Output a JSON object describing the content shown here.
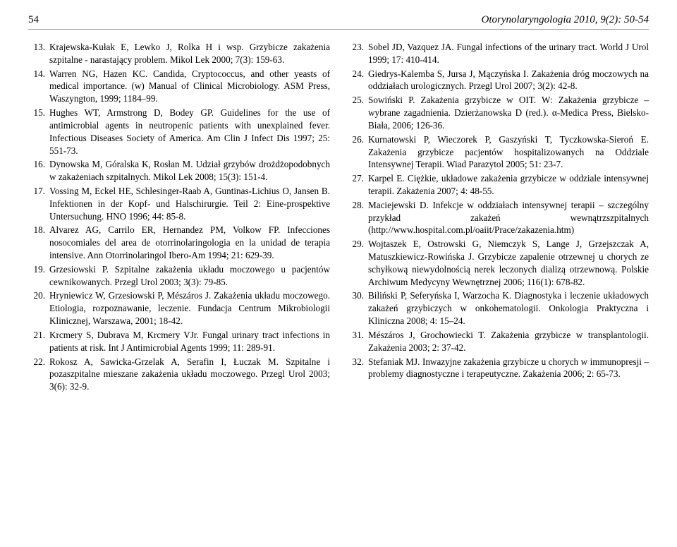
{
  "header": {
    "page_number": "54",
    "journal": "Otorynolaryngologia 2010, 9(2): 50-54"
  },
  "left_refs": [
    {
      "n": "13.",
      "t": "Krajewska-Kułak E, Lewko J, Rolka H i wsp. Grzybicze zakażenia szpitalne - narastający problem. Mikol Lek 2000; 7(3): 159-63."
    },
    {
      "n": "14.",
      "t": "Warren NG, Hazen KC. Candida, Cryptococcus, and other yeasts of medical importance. (w) Manual of Clinical Microbiology. ASM Press, Waszyngton, 1999; 1184–99."
    },
    {
      "n": "15.",
      "t": "Hughes WT, Armstrong D, Bodey GP. Guidelines for the use of antimicrobial agents in neutropenic patients with unexplained fever. Infectious Diseases Society of America. Am Clin J Infect Dis 1997; 25: 551-73."
    },
    {
      "n": "16.",
      "t": "Dynowska M, Góralska K, Rosłan M. Udział grzybów drożdżopodobnych w zakażeniach szpitalnych. Mikol Lek 2008; 15(3): 151-4."
    },
    {
      "n": "17.",
      "t": "Vossing M, Eckel HE, Schlesinger-Raab A, Guntinas-Lichius O, Jansen B. Infektionen in der Kopf- und Halschirurgie. Teil 2: Eine-prospektive Untersuchung. HNO 1996; 44: 85-8."
    },
    {
      "n": "18.",
      "t": "Alvarez AG, Carrilo ER, Hernandez PM, Volkow FP. Infecciones nosocomiales del area de otorrinolaringologia en la unidad de terapia intensive. Ann Otorrinolaringol Ibero-Am 1994; 21: 629-39."
    },
    {
      "n": "19.",
      "t": "Grzesiowski P. Szpitalne zakażenia układu moczowego u pacjentów cewnikowanych. Przegl Urol 2003; 3(3): 79-85."
    },
    {
      "n": "20.",
      "t": "Hryniewicz W, Grzesiowski P, Mészáros J. Zakażenia układu moczowego. Etiologia, rozpoznawanie, leczenie. Fundacja Centrum Mikrobiologii Klinicznej, Warszawa, 2001; 18-42."
    },
    {
      "n": "21.",
      "t": "Krcmery S, Dubrava M, Krcmery VJr. Fungal urinary tract infections in patients at risk. Int J Antimicrobial Agents 1999; 11: 289-91."
    },
    {
      "n": "22.",
      "t": "Rokosz A, Sawicka-Grzelak A, Serafin I, Łuczak M. Szpitalne i pozaszpitalne mieszane zakażenia układu moczowego. Przegl Urol 2003; 3(6): 32-9."
    }
  ],
  "right_refs": [
    {
      "n": "23.",
      "t": "Sobel JD, Vazquez JA. Fungal infections of the urinary tract. World J Urol 1999; 17: 410-414."
    },
    {
      "n": "24.",
      "t": "Giedrys-Kalemba S, Jursa J, Mączyńska I. Zakażenia dróg moczowych na oddziałach urologicznych. Przegl Urol 2007; 3(2): 42-8."
    },
    {
      "n": "25.",
      "t": "Sowiński P. Zakażenia grzybicze w OIT. W: Zakażenia grzybicze – wybrane zagadnienia. Dzierżanowska D (red.). α-Medica Press, Bielsko-Biała, 2006; 126-36."
    },
    {
      "n": "26.",
      "t": "Kurnatowski P, Wieczorek P, Gaszyński T, Tyczkowska-Sieroń E. Zakażenia grzybicze pacjentów hospitalizowanych na Oddziale Intensywnej Terapii. Wiad Parazytol 2005; 51: 23-7."
    },
    {
      "n": "27.",
      "t": "Karpel E. Ciężkie, układowe zakażenia grzybicze w oddziale intensywnej terapii. Zakażenia 2007; 4: 48-55."
    },
    {
      "n": "28.",
      "t": "Maciejewski D. Infekcje w oddziałach intensywnej terapii – szczególny przykład zakażeń wewnątrzszpitalnych (http://www.hospital.com.pl/oaiit/Prace/zakazenia.htm)"
    },
    {
      "n": "29.",
      "t": "Wojtaszek E, Ostrowski G, Niemczyk S, Lange J, Grzejszczak A, Matuszkiewicz-Rowińska J. Grzybicze zapalenie otrzewnej u chorych ze schyłkową niewydolnością nerek leczonych dializą otrzewnową. Polskie Archiwum Medycyny Wewnętrznej 2006; 116(1): 678-82."
    },
    {
      "n": "30.",
      "t": "Biliński P, Seferyńska I, Warzocha K. Diagnostyka i leczenie układowych zakażeń grzybiczych w onkohematologii. Onkologia Praktyczna i Kliniczna 2008; 4: 15–24."
    },
    {
      "n": "31.",
      "t": "Mészáros J, Grochowiecki T. Zakażenia grzybicze w transplantologii. Zakażenia 2003; 2: 37-42."
    },
    {
      "n": "32.",
      "t": "Stefaniak MJ. Inwazyjne zakażenia grzybicze u chorych w immunopresji – problemy diagnostyczne i terapeutyczne. Zakażenia 2006; 2: 65-73."
    }
  ]
}
